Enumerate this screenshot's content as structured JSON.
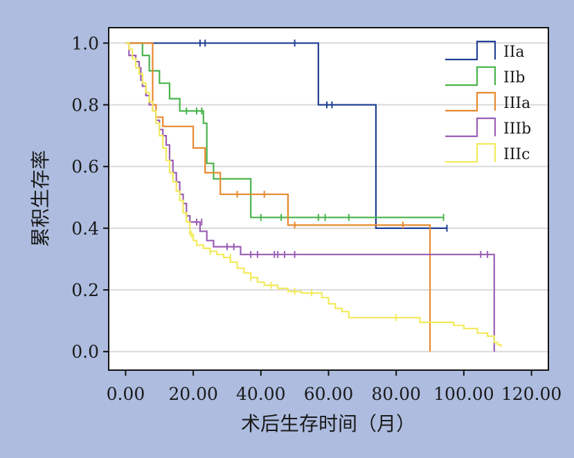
{
  "chart_data": {
    "type": "line",
    "step": true,
    "xlabel": "术后生存时间（月）",
    "ylabel": "累积生存率",
    "xlim": [
      -5,
      125
    ],
    "ylim": [
      -0.06,
      1.05
    ],
    "xticks": [
      0,
      20,
      40,
      60,
      80,
      100,
      120
    ],
    "xtick_labels": [
      "0.00",
      "20.00",
      "40.00",
      "60.00",
      "80.00",
      "100.00",
      "120.00"
    ],
    "yticks": [
      0,
      0.2,
      0.4,
      0.6,
      0.8,
      1.0
    ],
    "ytick_labels": [
      "0.0",
      "0.2",
      "0.4",
      "0.6",
      "0.8",
      "1.0"
    ],
    "grid": "horizontal",
    "legend": "top-right",
    "series": [
      {
        "name": "IIa",
        "color": "#203f94",
        "points": [
          [
            0,
            1.0
          ],
          [
            57,
            1.0
          ],
          [
            57,
            0.8
          ],
          [
            74,
            0.8
          ],
          [
            74,
            0.4
          ],
          [
            95,
            0.4
          ]
        ],
        "censored": [
          [
            22,
            1.0
          ],
          [
            23.5,
            1.0
          ],
          [
            50,
            1.0
          ],
          [
            59.5,
            0.8
          ],
          [
            61,
            0.8
          ],
          [
            95,
            0.4
          ]
        ]
      },
      {
        "name": "IIb",
        "color": "#49b34a",
        "points": [
          [
            0,
            1.0
          ],
          [
            5,
            1.0
          ],
          [
            5,
            0.96
          ],
          [
            7,
            0.96
          ],
          [
            7,
            0.91
          ],
          [
            10,
            0.91
          ],
          [
            10,
            0.87
          ],
          [
            13,
            0.87
          ],
          [
            13,
            0.82
          ],
          [
            16,
            0.82
          ],
          [
            16,
            0.78
          ],
          [
            23,
            0.78
          ],
          [
            23,
            0.74
          ],
          [
            24,
            0.74
          ],
          [
            24,
            0.61
          ],
          [
            26,
            0.61
          ],
          [
            26,
            0.56
          ],
          [
            37,
            0.56
          ],
          [
            37,
            0.435
          ],
          [
            94,
            0.435
          ]
        ],
        "censored": [
          [
            18,
            0.78
          ],
          [
            21,
            0.78
          ],
          [
            22.5,
            0.78
          ],
          [
            40,
            0.435
          ],
          [
            46,
            0.435
          ],
          [
            57,
            0.435
          ],
          [
            59,
            0.435
          ],
          [
            66,
            0.435
          ],
          [
            94,
            0.435
          ]
        ]
      },
      {
        "name": "IIIa",
        "color": "#e8882c",
        "points": [
          [
            0,
            1.0
          ],
          [
            8,
            1.0
          ],
          [
            8,
            0.8
          ],
          [
            9,
            0.8
          ],
          [
            9,
            0.76
          ],
          [
            11,
            0.76
          ],
          [
            11,
            0.73
          ],
          [
            20,
            0.73
          ],
          [
            20,
            0.66
          ],
          [
            23.5,
            0.66
          ],
          [
            23.5,
            0.58
          ],
          [
            28,
            0.58
          ],
          [
            28,
            0.51
          ],
          [
            48,
            0.51
          ],
          [
            48,
            0.41
          ],
          [
            90,
            0.41
          ],
          [
            90,
            0.0
          ]
        ],
        "censored": [
          [
            33,
            0.51
          ],
          [
            41,
            0.51
          ],
          [
            50,
            0.41
          ],
          [
            82,
            0.41
          ]
        ]
      },
      {
        "name": "IIIb",
        "color": "#9a5db4",
        "points": [
          [
            0,
            1.0
          ],
          [
            1,
            1.0
          ],
          [
            1,
            0.96
          ],
          [
            3,
            0.96
          ],
          [
            3,
            0.94
          ],
          [
            4,
            0.94
          ],
          [
            4,
            0.92
          ],
          [
            4.5,
            0.92
          ],
          [
            4.5,
            0.88
          ],
          [
            5,
            0.88
          ],
          [
            5,
            0.86
          ],
          [
            6,
            0.86
          ],
          [
            6,
            0.83
          ],
          [
            7,
            0.83
          ],
          [
            7,
            0.8
          ],
          [
            8,
            0.8
          ],
          [
            8,
            0.78
          ],
          [
            9,
            0.78
          ],
          [
            9,
            0.75
          ],
          [
            10,
            0.75
          ],
          [
            10,
            0.72
          ],
          [
            11,
            0.72
          ],
          [
            11,
            0.7
          ],
          [
            12,
            0.7
          ],
          [
            12,
            0.67
          ],
          [
            13,
            0.67
          ],
          [
            13,
            0.62
          ],
          [
            14,
            0.62
          ],
          [
            14,
            0.58
          ],
          [
            15,
            0.58
          ],
          [
            15,
            0.55
          ],
          [
            16,
            0.55
          ],
          [
            16,
            0.51
          ],
          [
            17,
            0.51
          ],
          [
            17,
            0.48
          ],
          [
            18,
            0.48
          ],
          [
            18,
            0.44
          ],
          [
            19,
            0.44
          ],
          [
            19,
            0.42
          ],
          [
            22,
            0.42
          ],
          [
            22,
            0.39
          ],
          [
            24,
            0.39
          ],
          [
            24,
            0.36
          ],
          [
            26,
            0.36
          ],
          [
            26,
            0.34
          ],
          [
            34,
            0.34
          ],
          [
            34,
            0.315
          ],
          [
            109,
            0.315
          ],
          [
            109,
            0.0
          ]
        ],
        "censored": [
          [
            21,
            0.42
          ],
          [
            22.5,
            0.42
          ],
          [
            30,
            0.34
          ],
          [
            32,
            0.34
          ],
          [
            37,
            0.315
          ],
          [
            39,
            0.315
          ],
          [
            44,
            0.315
          ],
          [
            45,
            0.315
          ],
          [
            47,
            0.315
          ],
          [
            50,
            0.315
          ],
          [
            105,
            0.315
          ],
          [
            107,
            0.315
          ]
        ]
      },
      {
        "name": "IIIc",
        "color": "#f2ea5a",
        "points": [
          [
            0,
            1.0
          ],
          [
            1,
            1.0
          ],
          [
            1,
            0.98
          ],
          [
            2,
            0.98
          ],
          [
            2,
            0.95
          ],
          [
            3,
            0.95
          ],
          [
            3,
            0.92
          ],
          [
            4,
            0.92
          ],
          [
            4,
            0.9
          ],
          [
            5,
            0.9
          ],
          [
            5,
            0.87
          ],
          [
            6,
            0.87
          ],
          [
            6,
            0.84
          ],
          [
            7,
            0.84
          ],
          [
            7,
            0.81
          ],
          [
            8,
            0.81
          ],
          [
            8,
            0.78
          ],
          [
            9,
            0.78
          ],
          [
            9,
            0.74
          ],
          [
            10,
            0.74
          ],
          [
            10,
            0.7
          ],
          [
            11,
            0.7
          ],
          [
            11,
            0.66
          ],
          [
            12,
            0.66
          ],
          [
            12,
            0.62
          ],
          [
            13,
            0.62
          ],
          [
            13,
            0.58
          ],
          [
            14,
            0.58
          ],
          [
            14,
            0.55
          ],
          [
            15,
            0.55
          ],
          [
            15,
            0.52
          ],
          [
            16,
            0.52
          ],
          [
            16,
            0.49
          ],
          [
            17,
            0.49
          ],
          [
            17,
            0.45
          ],
          [
            18,
            0.45
          ],
          [
            18,
            0.42
          ],
          [
            19,
            0.42
          ],
          [
            19,
            0.38
          ],
          [
            20,
            0.38
          ],
          [
            20,
            0.36
          ],
          [
            21,
            0.36
          ],
          [
            21,
            0.345
          ],
          [
            23,
            0.345
          ],
          [
            23,
            0.335
          ],
          [
            25,
            0.335
          ],
          [
            25,
            0.325
          ],
          [
            27,
            0.325
          ],
          [
            27,
            0.315
          ],
          [
            29,
            0.315
          ],
          [
            29,
            0.305
          ],
          [
            31,
            0.305
          ],
          [
            31,
            0.29
          ],
          [
            33,
            0.29
          ],
          [
            33,
            0.27
          ],
          [
            35,
            0.27
          ],
          [
            35,
            0.255
          ],
          [
            37,
            0.255
          ],
          [
            37,
            0.24
          ],
          [
            39,
            0.24
          ],
          [
            39,
            0.225
          ],
          [
            41,
            0.225
          ],
          [
            41,
            0.215
          ],
          [
            45,
            0.215
          ],
          [
            45,
            0.205
          ],
          [
            48,
            0.205
          ],
          [
            48,
            0.195
          ],
          [
            52,
            0.195
          ],
          [
            52,
            0.19
          ],
          [
            58,
            0.19
          ],
          [
            58,
            0.175
          ],
          [
            60,
            0.175
          ],
          [
            60,
            0.155
          ],
          [
            62,
            0.155
          ],
          [
            62,
            0.14
          ],
          [
            64,
            0.14
          ],
          [
            64,
            0.13
          ],
          [
            66,
            0.13
          ],
          [
            66,
            0.11
          ],
          [
            87,
            0.11
          ],
          [
            87,
            0.095
          ],
          [
            97,
            0.095
          ],
          [
            97,
            0.085
          ],
          [
            100,
            0.085
          ],
          [
            100,
            0.075
          ],
          [
            104,
            0.075
          ],
          [
            104,
            0.06
          ],
          [
            107,
            0.06
          ],
          [
            107,
            0.05
          ],
          [
            109,
            0.05
          ],
          [
            109,
            0.03
          ],
          [
            110,
            0.03
          ],
          [
            110,
            0.022
          ],
          [
            111,
            0.022
          ],
          [
            111,
            0.015
          ]
        ],
        "censored": [
          [
            19.5,
            0.38
          ],
          [
            25,
            0.325
          ],
          [
            31,
            0.305
          ],
          [
            37,
            0.24
          ],
          [
            43,
            0.215
          ],
          [
            50,
            0.195
          ],
          [
            55,
            0.19
          ],
          [
            80,
            0.11
          ]
        ]
      }
    ]
  }
}
